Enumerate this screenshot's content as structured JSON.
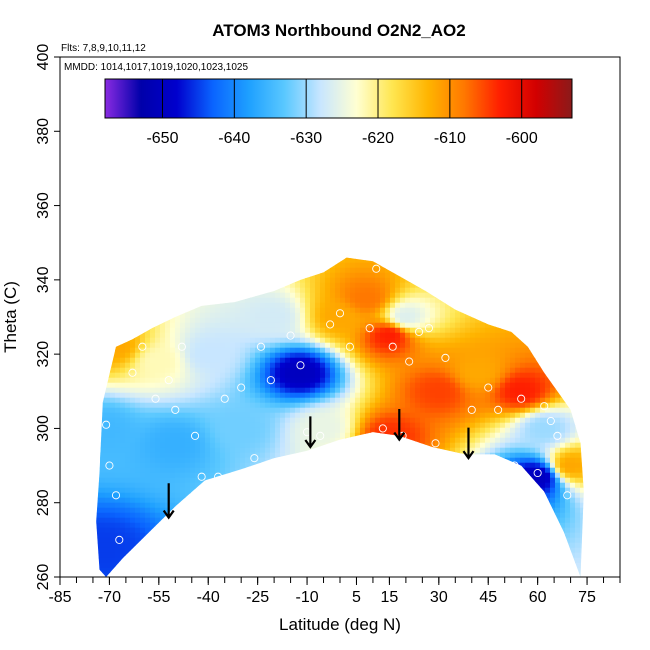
{
  "chart_data": {
    "type": "heatmap",
    "title": "ATOM3 Northbound O2N2_AO2",
    "subtitle_flights": "Flts: 7,8,9,10,11,12",
    "subtitle_dates": "MMDD: 1014,1017,1019,1020,1023,1025",
    "xlabel": "Latitude (deg N)",
    "ylabel": "Theta (C)",
    "xlim": [
      -85,
      85
    ],
    "ylim": [
      260,
      400
    ],
    "x_ticks": [
      -85,
      -70,
      -55,
      -40,
      -25,
      -10,
      5,
      15,
      30,
      45,
      60,
      75
    ],
    "y_ticks": [
      260,
      280,
      300,
      320,
      340,
      360,
      380,
      400
    ],
    "colorbar": {
      "min": -658,
      "max": -593,
      "ticks": [
        -650,
        -640,
        -630,
        -620,
        -610,
        -600
      ],
      "colors": [
        "#8a2be2",
        "#0000aa",
        "#0000cd",
        "#0a64ff",
        "#1ea0ff",
        "#5ac8ff",
        "#c8e6ff",
        "#ffffd2",
        "#ffe650",
        "#ffb400",
        "#ff7800",
        "#ff1e00",
        "#d20000",
        "#8b1a1a"
      ]
    },
    "value_field_description_points": [
      {
        "lat": -68,
        "theta": 322,
        "value": -612
      },
      {
        "lat": -72,
        "theta": 300,
        "value": -635
      },
      {
        "lat": -72,
        "theta": 268,
        "value": -645
      },
      {
        "lat": -55,
        "theta": 318,
        "value": -622
      },
      {
        "lat": -50,
        "theta": 296,
        "value": -636
      },
      {
        "lat": -40,
        "theta": 320,
        "value": -628
      },
      {
        "lat": -30,
        "theta": 300,
        "value": -632
      },
      {
        "lat": -20,
        "theta": 330,
        "value": -627
      },
      {
        "lat": -12,
        "theta": 315,
        "value": -650
      },
      {
        "lat": -5,
        "theta": 300,
        "value": -625
      },
      {
        "lat": 0,
        "theta": 330,
        "value": -612
      },
      {
        "lat": 8,
        "theta": 335,
        "value": -608
      },
      {
        "lat": 15,
        "theta": 325,
        "value": -603
      },
      {
        "lat": 20,
        "theta": 330,
        "value": -626
      },
      {
        "lat": 15,
        "theta": 298,
        "value": -604
      },
      {
        "lat": 30,
        "theta": 310,
        "value": -605
      },
      {
        "lat": 42,
        "theta": 315,
        "value": -612
      },
      {
        "lat": 55,
        "theta": 310,
        "value": -603
      },
      {
        "lat": 60,
        "theta": 287,
        "value": -650
      },
      {
        "lat": 62,
        "theta": 300,
        "value": -630
      },
      {
        "lat": 70,
        "theta": 290,
        "value": -612
      }
    ],
    "sample_points": [
      [
        -71,
        301
      ],
      [
        -70,
        290
      ],
      [
        -68,
        282
      ],
      [
        -67,
        270
      ],
      [
        -63,
        315
      ],
      [
        -60,
        322
      ],
      [
        -56,
        308
      ],
      [
        -52,
        313
      ],
      [
        -50,
        305
      ],
      [
        -48,
        322
      ],
      [
        -44,
        298
      ],
      [
        -42,
        287
      ],
      [
        -37,
        287
      ],
      [
        -35,
        308
      ],
      [
        -30,
        311
      ],
      [
        -26,
        292
      ],
      [
        -24,
        322
      ],
      [
        -21,
        313
      ],
      [
        -18,
        290
      ],
      [
        -15,
        325
      ],
      [
        -12,
        317
      ],
      [
        -10,
        299
      ],
      [
        -6,
        298
      ],
      [
        -3,
        328
      ],
      [
        0,
        331
      ],
      [
        3,
        322
      ],
      [
        9,
        327
      ],
      [
        11,
        343
      ],
      [
        13,
        300
      ],
      [
        16,
        322
      ],
      [
        19,
        298
      ],
      [
        21,
        318
      ],
      [
        24,
        326
      ],
      [
        27,
        327
      ],
      [
        29,
        296
      ],
      [
        32,
        319
      ],
      [
        36,
        292
      ],
      [
        40,
        305
      ],
      [
        45,
        311
      ],
      [
        48,
        305
      ],
      [
        53,
        290
      ],
      [
        55,
        308
      ],
      [
        57,
        282
      ],
      [
        60,
        288
      ],
      [
        62,
        306
      ],
      [
        64,
        302
      ],
      [
        66,
        298
      ],
      [
        69,
        282
      ]
    ],
    "arrows": [
      {
        "lat": -52,
        "theta_from": 282,
        "theta_to": 276
      },
      {
        "lat": -9,
        "theta_from": 300,
        "theta_to": 295
      },
      {
        "lat": 18,
        "theta_from": 302,
        "theta_to": 297
      },
      {
        "lat": 39,
        "theta_from": 297,
        "theta_to": 292
      }
    ]
  }
}
